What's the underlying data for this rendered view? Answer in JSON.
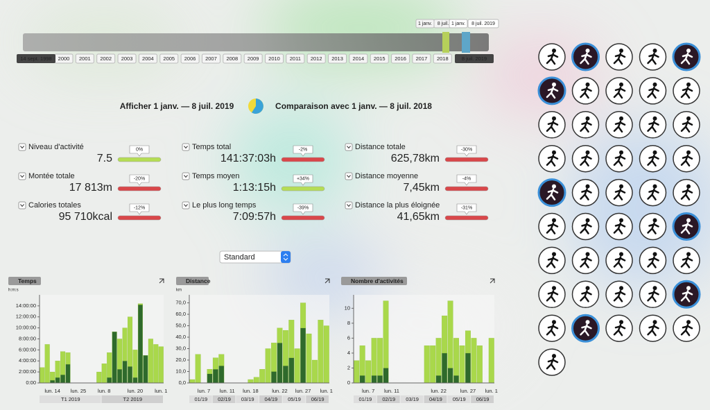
{
  "timeline": {
    "start": "14 sept. 1998",
    "end": "8 juil. 2019",
    "years": [
      "2000",
      "2001",
      "2002",
      "2003",
      "2004",
      "2005",
      "2006",
      "2007",
      "2008",
      "2009",
      "2010",
      "2011",
      "2012",
      "2013",
      "2014",
      "2015",
      "2016",
      "2017",
      "2018"
    ],
    "markers": [
      "1 janv.",
      "8 juil.",
      "1 janv.",
      "8 juil. 2019"
    ]
  },
  "header": {
    "show": "Afficher 1 janv. — 8 juil. 2019",
    "compare": "Comparaison avec 1 janv. — 8 juil. 2018"
  },
  "stats": [
    {
      "label": "Niveau d'activité",
      "value": "7.5",
      "change": "0%",
      "color": "#b5dd55"
    },
    {
      "label": "Montée totale",
      "value": "17 813m",
      "change": "-20%",
      "color": "#d9474a"
    },
    {
      "label": "Calories totales",
      "value": "95 710kcal",
      "change": "-12%",
      "color": "#d9474a"
    },
    {
      "label": "Temps total",
      "value": "141:37:03h",
      "change": "-2%",
      "color": "#d9474a"
    },
    {
      "label": "Temps moyen",
      "value": "1:13:15h",
      "change": "+34%",
      "color": "#b5dd55"
    },
    {
      "label": "Le plus long temps",
      "value": "7:09:57h",
      "change": "-39%",
      "color": "#d9474a"
    },
    {
      "label": "Distance totale",
      "value": "625,78km",
      "change": "-30%",
      "color": "#d9474a"
    },
    {
      "label": "Distance moyenne",
      "value": "7,45km",
      "change": "-4%",
      "color": "#d9474a"
    },
    {
      "label": "Distance la plus éloignée",
      "value": "41,65km",
      "change": "-31%",
      "color": "#d9474a"
    }
  ],
  "dropdown": "Standard",
  "chart_data": [
    {
      "type": "bar",
      "title": "Temps",
      "unit": "h:m:s",
      "ylim": [
        0,
        16
      ],
      "yticks": [
        {
          "value": 0,
          "label": "0:00"
        },
        {
          "value": 2,
          "label": "2:00:00"
        },
        {
          "value": 4,
          "label": "4:00:00"
        },
        {
          "value": 6,
          "label": "6:00:00"
        },
        {
          "value": 8,
          "label": "8:00:00"
        },
        {
          "value": 10,
          "label": "10:00:00"
        },
        {
          "value": 12,
          "label": "12:00:00"
        },
        {
          "value": 14,
          "label": "14:00:00"
        }
      ],
      "categories": [
        null,
        null,
        "lun. 14",
        null,
        null,
        null,
        null,
        "lun. 25",
        null,
        null,
        null,
        null,
        "lun. 8",
        null,
        null,
        null,
        null,
        null,
        "lun. 20",
        null,
        null,
        null,
        null,
        "lun. 1"
      ],
      "groups": [
        "T1 2019",
        "T2 2019"
      ],
      "series": [
        {
          "color": "#2f6a2c",
          "values": [
            0,
            0,
            0.5,
            1,
            1.5,
            3.4,
            0,
            0,
            0,
            0,
            0,
            0,
            0,
            1,
            9.3,
            2.5,
            4,
            3,
            1,
            14.2,
            5,
            0,
            0,
            0
          ]
        },
        {
          "color": "#a9d84b",
          "values": [
            2.8,
            7,
            1.5,
            3,
            4.2,
            2.1,
            0,
            0,
            0,
            0,
            0,
            2,
            3.5,
            4.5,
            0,
            5.5,
            6,
            9,
            5,
            0.2,
            0,
            8,
            7,
            6.6
          ]
        }
      ]
    },
    {
      "type": "bar",
      "title": "Distance",
      "unit": "km",
      "ylim": [
        0,
        77
      ],
      "yticks": [
        {
          "value": 0,
          "label": "0,0"
        },
        {
          "value": 10,
          "label": "10,0"
        },
        {
          "value": 20,
          "label": "20,0"
        },
        {
          "value": 30,
          "label": "30,0"
        },
        {
          "value": 40,
          "label": "40,0"
        },
        {
          "value": 50,
          "label": "50,0"
        },
        {
          "value": 60,
          "label": "60,0"
        },
        {
          "value": 70,
          "label": "70,0"
        }
      ],
      "categories": [
        null,
        null,
        "lun. 7",
        null,
        null,
        null,
        "lun. 11",
        null,
        null,
        null,
        "lun. 18",
        null,
        null,
        null,
        null,
        "lun. 22",
        null,
        null,
        null,
        "lun. 27",
        null,
        null,
        null,
        "lun. 1"
      ],
      "groups": [
        "01/19",
        "02/19",
        "03/19",
        "04/19",
        "05/19",
        "06/19"
      ],
      "series": [
        {
          "color": "#2f6a2c",
          "values": [
            0,
            0,
            0,
            8,
            12,
            15,
            0,
            0,
            0,
            0,
            0,
            0,
            0,
            0,
            10,
            35,
            15,
            22,
            0,
            48,
            0,
            0,
            0,
            0
          ]
        },
        {
          "color": "#a9d84b",
          "values": [
            3,
            25,
            0,
            4,
            10,
            10,
            0,
            0,
            0,
            0,
            3,
            5,
            12,
            30,
            25,
            13,
            31,
            33,
            30,
            22,
            43,
            20,
            55,
            50
          ]
        }
      ]
    },
    {
      "type": "bar",
      "title": "Nombre d'activités",
      "ylim": [
        0,
        11.8
      ],
      "yticks": [
        0,
        2,
        4,
        6,
        8,
        10
      ],
      "categories": [
        null,
        null,
        "lun. 7",
        null,
        null,
        null,
        "lun. 11",
        null,
        null,
        null,
        null,
        null,
        null,
        null,
        "lun. 22",
        null,
        null,
        null,
        null,
        "lun. 27",
        null,
        null,
        null,
        "lun. 1"
      ],
      "groups": [
        "01/19",
        "02/19",
        "03/19",
        "04/19",
        "05/19",
        "06/19"
      ],
      "series": [
        {
          "color": "#2f6a2c",
          "values": [
            0,
            1,
            0,
            1,
            1,
            2,
            0,
            0,
            0,
            0,
            0,
            0,
            0,
            0,
            1,
            4,
            2,
            1,
            0,
            4,
            0,
            0,
            0,
            0
          ]
        },
        {
          "color": "#a9d84b",
          "values": [
            3,
            4,
            3,
            5,
            5,
            9,
            0,
            0,
            0,
            0,
            0,
            0,
            5,
            5,
            5,
            5,
            9,
            5,
            5,
            3,
            6,
            5,
            0,
            6
          ]
        }
      ]
    }
  ]
}
